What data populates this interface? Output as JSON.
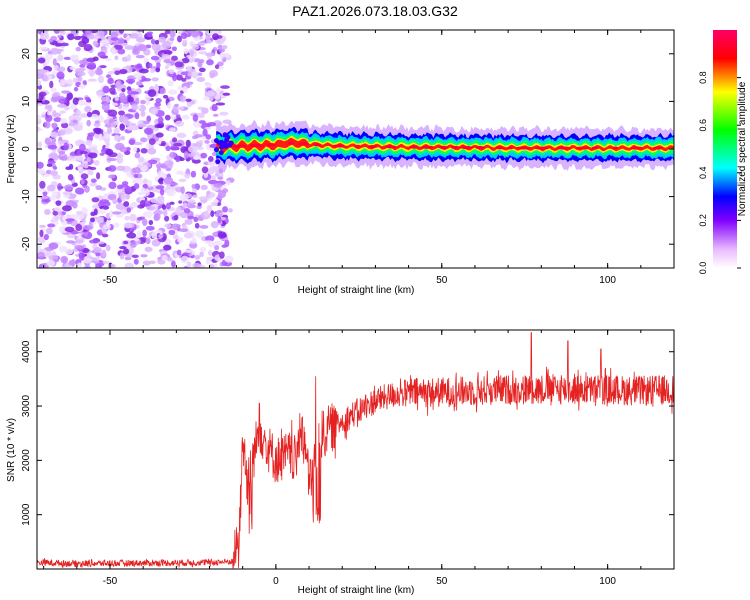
{
  "title": "PAZ1.2026.073.18.03.G32",
  "chart_data": [
    {
      "type": "heatmap",
      "name": "spectrogram",
      "xlabel": "Height of straight line (km)",
      "ylabel": "Frequency (Hz)",
      "xlim": [
        -72,
        120
      ],
      "ylim": [
        -25,
        25
      ],
      "xticks": [
        -50,
        0,
        50,
        100
      ],
      "yticks": [
        -20,
        -10,
        0,
        10,
        20
      ],
      "noise_region_x": [
        -72,
        -15
      ],
      "signal_start_x": -18,
      "signal_center_freq": [
        {
          "x": -18,
          "f": 0.5
        },
        {
          "x": -10,
          "f": 0.6
        },
        {
          "x": 0,
          "f": 0.9
        },
        {
          "x": 5,
          "f": 1.3
        },
        {
          "x": 10,
          "f": 1.0
        },
        {
          "x": 20,
          "f": 0.6
        },
        {
          "x": 40,
          "f": 0.4
        },
        {
          "x": 60,
          "f": 0.3
        },
        {
          "x": 80,
          "f": 0.2
        },
        {
          "x": 100,
          "f": 0.2
        },
        {
          "x": 120,
          "f": 0.2
        }
      ],
      "colorbar": {
        "label": "Normalized spectral amplitude",
        "range": [
          0.0,
          1.0
        ],
        "ticks": [
          "0.0",
          "0.2",
          "0.4",
          "0.6",
          "0.8"
        ],
        "colors": [
          "#ffffff",
          "#ff00ff",
          "#0000ff",
          "#00ffff",
          "#00ff00",
          "#ffff00",
          "#ff0000",
          "#ff0066"
        ]
      }
    },
    {
      "type": "line",
      "name": "snr",
      "xlabel": "Height of straight line (km)",
      "ylabel": "SNR (10 * v/v)",
      "xlim": [
        -72,
        120
      ],
      "ylim": [
        0,
        4400
      ],
      "xticks": [
        -50,
        0,
        50,
        100
      ],
      "yticks": [
        1000,
        2000,
        3000,
        4000
      ],
      "color": "#e52222",
      "series": [
        {
          "x": -72,
          "y": 120
        },
        {
          "x": -60,
          "y": 100
        },
        {
          "x": -40,
          "y": 110
        },
        {
          "x": -20,
          "y": 120
        },
        {
          "x": -13,
          "y": 140
        },
        {
          "x": -11,
          "y": 600
        },
        {
          "x": -10,
          "y": 2300
        },
        {
          "x": -8,
          "y": 1700
        },
        {
          "x": -5,
          "y": 2600
        },
        {
          "x": -3,
          "y": 2300
        },
        {
          "x": 0,
          "y": 2000
        },
        {
          "x": 4,
          "y": 2100
        },
        {
          "x": 6,
          "y": 2000
        },
        {
          "x": 8,
          "y": 2700
        },
        {
          "x": 10,
          "y": 1600
        },
        {
          "x": 12,
          "y": 2000
        },
        {
          "x": 14,
          "y": 2500
        },
        {
          "x": 18,
          "y": 2650
        },
        {
          "x": 22,
          "y": 2800
        },
        {
          "x": 26,
          "y": 2950
        },
        {
          "x": 30,
          "y": 3100
        },
        {
          "x": 35,
          "y": 3200
        },
        {
          "x": 40,
          "y": 3250
        },
        {
          "x": 50,
          "y": 3250
        },
        {
          "x": 60,
          "y": 3280
        },
        {
          "x": 70,
          "y": 3300
        },
        {
          "x": 80,
          "y": 3320
        },
        {
          "x": 90,
          "y": 3300
        },
        {
          "x": 100,
          "y": 3300
        },
        {
          "x": 110,
          "y": 3280
        },
        {
          "x": 120,
          "y": 3300
        }
      ],
      "notable_peaks": [
        {
          "x": 77,
          "y": 4350
        },
        {
          "x": 98,
          "y": 4050
        },
        {
          "x": 88,
          "y": 4200
        },
        {
          "x": 12,
          "y": 3550
        },
        {
          "x": -5,
          "y": 3050
        }
      ]
    }
  ]
}
